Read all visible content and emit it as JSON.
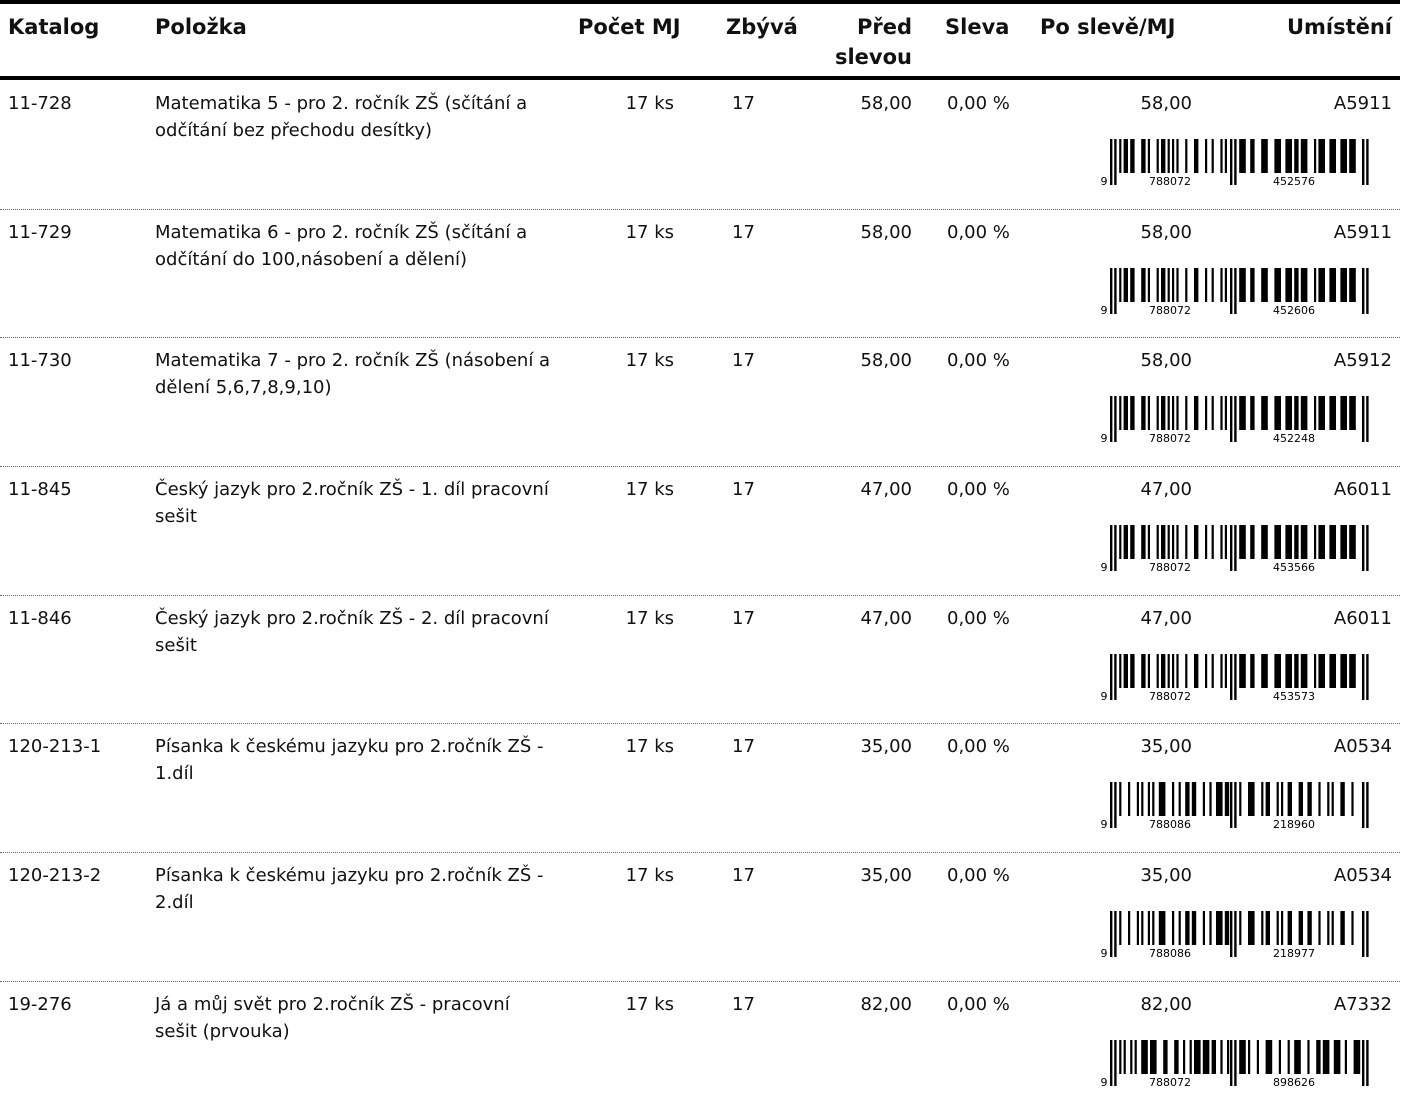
{
  "header": {
    "catalog": "Katalog",
    "item": "Položka",
    "quantity": "Počet MJ",
    "remaining": "Zbývá",
    "before_discount_line1": "Před",
    "before_discount_line2": "slevou",
    "discount": "Sleva",
    "after_discount": "Po slevě/MJ",
    "location": "Umístění"
  },
  "rows": [
    {
      "catalog": "11-728",
      "item": "Matematika 5 - pro 2. ročník ZŠ (sčítání a odčítání bez přechodu desítky)",
      "quantity": "17 ks",
      "remaining": "17",
      "before_discount": "58,00",
      "discount": "0,00 %",
      "after_discount": "58,00",
      "location": "A5911",
      "barcode": {
        "lead": "9",
        "left": "788072",
        "right": "452576"
      }
    },
    {
      "catalog": "11-729",
      "item": "Matematika 6 - pro 2. ročník ZŠ (sčítání a odčítání do 100,násobení a dělení)",
      "quantity": "17 ks",
      "remaining": "17",
      "before_discount": "58,00",
      "discount": "0,00 %",
      "after_discount": "58,00",
      "location": "A5911",
      "barcode": {
        "lead": "9",
        "left": "788072",
        "right": "452606"
      }
    },
    {
      "catalog": "11-730",
      "item": "Matematika 7 - pro 2. ročník ZŠ (násobení a dělení 5,6,7,8,9,10)",
      "quantity": "17 ks",
      "remaining": "17",
      "before_discount": "58,00",
      "discount": "0,00 %",
      "after_discount": "58,00",
      "location": "A5912",
      "barcode": {
        "lead": "9",
        "left": "788072",
        "right": "452248"
      }
    },
    {
      "catalog": "11-845",
      "item": "Český jazyk pro 2.ročník ZŠ - 1. díl pracovní sešit",
      "quantity": "17 ks",
      "remaining": "17",
      "before_discount": "47,00",
      "discount": "0,00 %",
      "after_discount": "47,00",
      "location": "A6011",
      "barcode": {
        "lead": "9",
        "left": "788072",
        "right": "453566"
      }
    },
    {
      "catalog": "11-846",
      "item": "Český jazyk pro 2.ročník ZŠ - 2. díl pracovní sešit",
      "quantity": "17 ks",
      "remaining": "17",
      "before_discount": "47,00",
      "discount": "0,00 %",
      "after_discount": "47,00",
      "location": "A6011",
      "barcode": {
        "lead": "9",
        "left": "788072",
        "right": "453573"
      }
    },
    {
      "catalog": "120-213-1",
      "item": "Písanka k českému jazyku pro 2.ročník ZŠ - 1.díl",
      "quantity": "17 ks",
      "remaining": "17",
      "before_discount": "35,00",
      "discount": "0,00 %",
      "after_discount": "35,00",
      "location": "A0534",
      "barcode": {
        "lead": "9",
        "left": "788086",
        "right": "218960"
      }
    },
    {
      "catalog": "120-213-2",
      "item": "Písanka k českému jazyku pro 2.ročník ZŠ - 2.díl",
      "quantity": "17 ks",
      "remaining": "17",
      "before_discount": "35,00",
      "discount": "0,00 %",
      "after_discount": "35,00",
      "location": "A0534",
      "barcode": {
        "lead": "9",
        "left": "788086",
        "right": "218977"
      }
    },
    {
      "catalog": "19-276",
      "item": "Já a můj svět pro 2.ročník ZŠ - pracovní sešit (prvouka)",
      "quantity": "17 ks",
      "remaining": "17",
      "before_discount": "82,00",
      "discount": "0,00 %",
      "after_discount": "82,00",
      "location": "A7332",
      "barcode": {
        "lead": "9",
        "left": "788072",
        "right": "898626"
      }
    }
  ]
}
